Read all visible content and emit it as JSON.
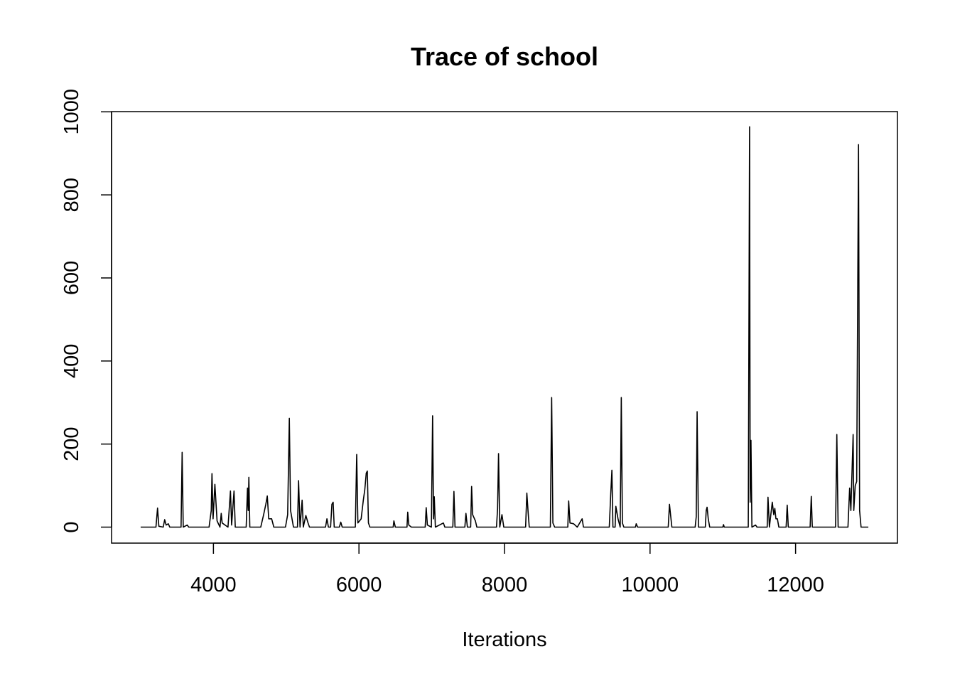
{
  "chart_data": {
    "type": "line",
    "title": "Trace of school",
    "x_label": "Iterations",
    "color": "#000000",
    "x": [
      3000,
      3210,
      3232,
      3250,
      3310,
      3330,
      3350,
      3380,
      3400,
      3555,
      3570,
      3585,
      3640,
      3660,
      3940,
      3970,
      3980,
      3995,
      4020,
      4050,
      4090,
      4107,
      4120,
      4200,
      4234,
      4250,
      4283,
      4300,
      4450,
      4468,
      4478,
      4487,
      4500,
      4650,
      4690,
      4720,
      4740,
      4760,
      4800,
      4830,
      4990,
      5020,
      5043,
      5060,
      5100,
      5155,
      5170,
      5190,
      5219,
      5235,
      5270,
      5300,
      5320,
      5540,
      5560,
      5580,
      5610,
      5628,
      5645,
      5660,
      5730,
      5750,
      5770,
      5950,
      5969,
      5985,
      6030,
      6060,
      6080,
      6100,
      6115,
      6130,
      6150,
      6470,
      6480,
      6500,
      6660,
      6670,
      6685,
      6720,
      6910,
      6924,
      6940,
      6995,
      7012,
      7025,
      7035,
      7050,
      7160,
      7180,
      7290,
      7305,
      7320,
      7455,
      7470,
      7490,
      7535,
      7548,
      7562,
      7600,
      7620,
      7890,
      7905,
      7918,
      7935,
      7965,
      7990,
      8290,
      8307,
      8325,
      8340,
      8630,
      8648,
      8665,
      8690,
      8870,
      8882,
      8900,
      8950,
      9000,
      9067,
      9085,
      9200,
      9440,
      9460,
      9476,
      9490,
      9520,
      9530,
      9560,
      9590,
      9605,
      9620,
      9640,
      9800,
      9810,
      9830,
      10250,
      10267,
      10285,
      10300,
      10620,
      10635,
      10647,
      10665,
      10760,
      10772,
      10784,
      10800,
      10820,
      11000,
      11010,
      11020,
      11350,
      11368,
      11376,
      11387,
      11400,
      11450,
      11470,
      11610,
      11621,
      11640,
      11680,
      11700,
      11715,
      11730,
      11750,
      11770,
      11870,
      11885,
      11900,
      12200,
      12216,
      12230,
      12550,
      12567,
      12585,
      12720,
      12743,
      12760,
      12791,
      12800,
      12820,
      12840,
      12865,
      12880,
      12900,
      13000
    ],
    "values": [
      0,
      0,
      46,
      2,
      0,
      18,
      5,
      8,
      0,
      0,
      180,
      0,
      5,
      0,
      0,
      40,
      129,
      20,
      103,
      15,
      0,
      33,
      10,
      0,
      87,
      5,
      87,
      0,
      0,
      94,
      40,
      120,
      0,
      0,
      30,
      55,
      75,
      20,
      20,
      0,
      0,
      30,
      262,
      40,
      0,
      0,
      112,
      0,
      65,
      0,
      28,
      10,
      0,
      0,
      20,
      0,
      0,
      55,
      60,
      0,
      0,
      12,
      0,
      0,
      175,
      10,
      20,
      65,
      90,
      130,
      135,
      10,
      0,
      0,
      15,
      0,
      0,
      36,
      5,
      0,
      0,
      47,
      5,
      0,
      268,
      20,
      73,
      0,
      10,
      0,
      0,
      86,
      0,
      0,
      33,
      0,
      0,
      98,
      30,
      15,
      0,
      0,
      45,
      177,
      0,
      30,
      0,
      0,
      82,
      35,
      0,
      0,
      312,
      10,
      0,
      0,
      63,
      10,
      8,
      0,
      20,
      0,
      0,
      0,
      80,
      137,
      0,
      0,
      50,
      20,
      0,
      312,
      10,
      0,
      0,
      8,
      0,
      0,
      55,
      25,
      0,
      0,
      25,
      278,
      0,
      0,
      40,
      48,
      20,
      0,
      0,
      6,
      0,
      0,
      964,
      60,
      209,
      0,
      5,
      0,
      0,
      72,
      0,
      60,
      30,
      45,
      20,
      20,
      0,
      0,
      53,
      0,
      0,
      74,
      0,
      0,
      223,
      0,
      0,
      94,
      40,
      223,
      40,
      100,
      110,
      921,
      40,
      0,
      0
    ],
    "xlim": [
      2600,
      13400
    ],
    "xticks": [
      4000,
      6000,
      8000,
      10000,
      12000
    ],
    "ylim": [
      -38.5,
      1000.5
    ],
    "yticks": [
      0,
      200,
      400,
      600,
      800,
      1000
    ]
  }
}
